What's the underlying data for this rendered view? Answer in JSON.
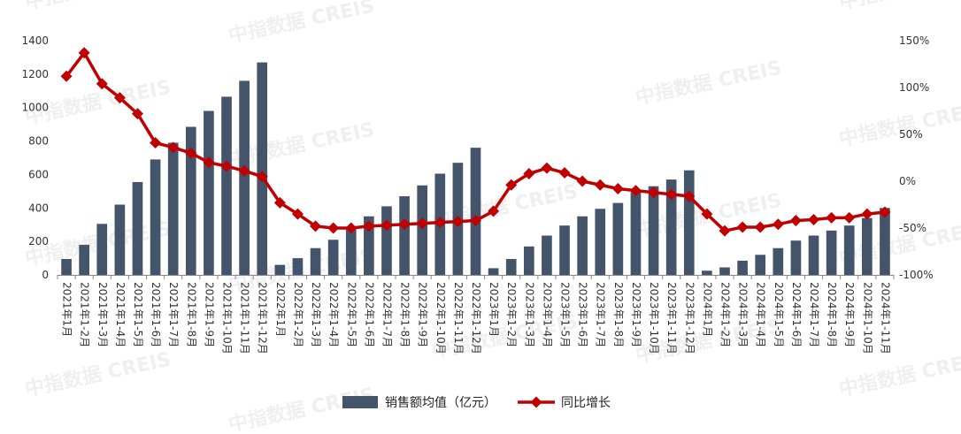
{
  "chart_data": {
    "type": "bar+line",
    "categories": [
      "2021年1月",
      "2021年1-2月",
      "2021年1-3月",
      "2021年1-4月",
      "2021年1-5月",
      "2021年1-6月",
      "2021年1-7月",
      "2021年1-8月",
      "2021年1-9月",
      "2021年1-10月",
      "2021年1-11月",
      "2021年1-12月",
      "2022年1月",
      "2022年1-2月",
      "2022年1-3月",
      "2022年1-4月",
      "2022年1-5月",
      "2022年1-6月",
      "2022年1-7月",
      "2022年1-8月",
      "2022年1-9月",
      "2022年1-10月",
      "2022年1-11月",
      "2022年1-12月",
      "2023年1月",
      "2023年1-2月",
      "2023年1-3月",
      "2023年1-4月",
      "2023年1-5月",
      "2023年1-6月",
      "2023年1-7月",
      "2023年1-8月",
      "2023年1-9月",
      "2023年1-10月",
      "2023年1-11月",
      "2023年1-12月",
      "2024年1月",
      "2024年1-2月",
      "2024年1-3月",
      "2024年1-4月",
      "2024年1-5月",
      "2024年1-6月",
      "2024年1-7月",
      "2024年1-8月",
      "2024年1-9月",
      "2024年1-10月",
      "2024年1-11月"
    ],
    "series": [
      {
        "name": "销售额均值（亿元）",
        "type": "bar",
        "axis": "left",
        "color": "#44546a",
        "values": [
          95,
          180,
          305,
          420,
          555,
          690,
          790,
          885,
          980,
          1065,
          1160,
          1270,
          60,
          100,
          160,
          210,
          280,
          350,
          410,
          470,
          535,
          605,
          670,
          760,
          40,
          95,
          170,
          235,
          295,
          350,
          395,
          430,
          495,
          530,
          570,
          625,
          25,
          45,
          85,
          120,
          160,
          205,
          235,
          265,
          295,
          340,
          400
        ]
      },
      {
        "name": "同比增长",
        "type": "line",
        "axis": "right",
        "color": "#c00000",
        "values": [
          112,
          137,
          104,
          89,
          72,
          41,
          36,
          30,
          20,
          16,
          11,
          5,
          -23,
          -35,
          -48,
          -50,
          -50,
          -48,
          -47,
          -46,
          -45,
          -44,
          -43,
          -42,
          -32,
          -4,
          8,
          14,
          9,
          0,
          -4,
          -8,
          -10,
          -12,
          -14,
          -16,
          -35,
          -53,
          -49,
          -49,
          -46,
          -42,
          -41,
          -39,
          -39,
          -35,
          -33
        ]
      }
    ],
    "y_left": {
      "min": 0,
      "max": 1400,
      "ticks": [
        0,
        200,
        400,
        600,
        800,
        1000,
        1200,
        1400
      ]
    },
    "y_right": {
      "min": -100,
      "max": 150,
      "ticks": [
        "-100%",
        "-50%",
        "0%",
        "50%",
        "100%",
        "150%"
      ]
    },
    "legend_position": "bottom",
    "grid": false
  },
  "watermark": "中指数据 CREIS"
}
